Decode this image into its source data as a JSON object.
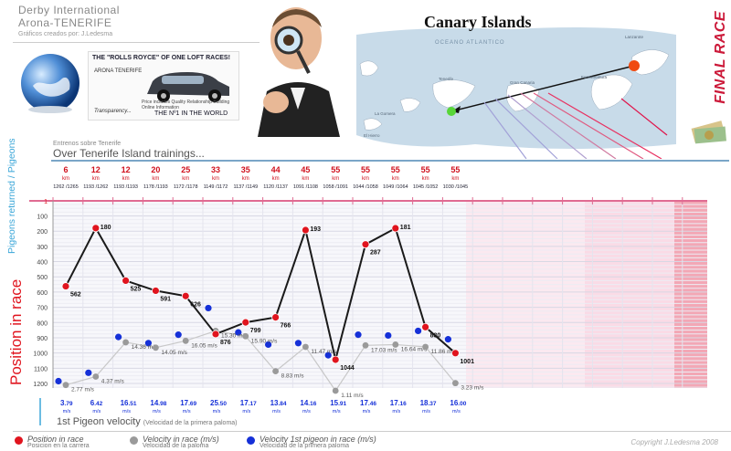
{
  "header": {
    "title_line1": "Derby International",
    "title_line2": "Arona-TENERIFE",
    "credit": "Gráficos creados por: J.Ledesma",
    "final_race": "FINAL RACE"
  },
  "promo": {
    "headline": "THE \"ROLLS ROYCE\" OF ONE LOFT RACES!",
    "brand": "ARONA TENERIFE",
    "small_text": "Price includes Quality Relationship Building Online Information",
    "transparency": "Transparency...",
    "tagline": "THE Nº1 IN THE WORLD"
  },
  "map": {
    "title": "Canary Islands",
    "ocean": "OCEANO ATLANTICO",
    "islands": [
      "Lanzarote",
      "Tenerife",
      "La Gomera",
      "El Hierro",
      "Gran Canaria",
      "Fuerteventura"
    ]
  },
  "training": {
    "subtitle": "Entrenos sobre Tenerife",
    "title": "Over Tenerife Island trainings..."
  },
  "side_labels": {
    "pigeons": "Pigeons returned / Pigeons sent",
    "position": "Position in race"
  },
  "chart_data": {
    "type": "line",
    "distances_km": [
      6,
      12,
      12,
      20,
      25,
      33,
      35,
      44,
      45,
      55,
      55,
      55,
      55,
      55
    ],
    "distance_unit": "km",
    "pigeons_returned": [
      1262,
      1193,
      1193,
      1178,
      1172,
      1149,
      1137,
      1120,
      1091,
      1058,
      1044,
      1049,
      1045,
      1030
    ],
    "pigeons_sent": [
      1265,
      1262,
      1193,
      1193,
      1178,
      1172,
      1149,
      1137,
      1108,
      1091,
      1058,
      1064,
      1052,
      1045
    ],
    "y_axis_ticks": [
      1,
      100,
      200,
      300,
      400,
      500,
      600,
      700,
      800,
      900,
      1000,
      1100,
      1200
    ],
    "ylim": [
      1,
      1230
    ],
    "series": [
      {
        "name": "Position in race",
        "color": "#e0141e",
        "values": [
          562,
          180,
          525,
          591,
          626,
          876,
          799,
          766,
          193,
          1044,
          287,
          181,
          830,
          1001
        ],
        "labels": [
          "562",
          "180",
          "525",
          "591",
          "626",
          "876",
          "799",
          "766",
          "193",
          "1044",
          "287",
          "181",
          "830",
          "1001"
        ]
      },
      {
        "name": "Velocity in race (m/s)",
        "color": "#9a9a9a",
        "positions": [
          1210,
          1155,
          930,
          965,
          920,
          855,
          890,
          1120,
          960,
          1248,
          950,
          945,
          960,
          1198
        ],
        "labels": [
          "2.77",
          "4.37",
          "14.36",
          "14.05",
          "16.05",
          "15.30",
          "15.90",
          "8.83",
          "11.47",
          "1.11",
          "17.03",
          "16.64",
          "11.86",
          "3.23"
        ],
        "unit": "m/s"
      },
      {
        "name": "Velocity 1st pigeon in race (m/s)",
        "color": "#1530d8",
        "positions": [
          1185,
          1130,
          895,
          935,
          880,
          705,
          865,
          945,
          935,
          1015,
          880,
          885,
          855,
          910
        ]
      }
    ],
    "first_velocity_int": [
      "3",
      "6",
      "16",
      "14",
      "17",
      "25",
      "17",
      "13",
      "14",
      "15",
      "17",
      "17",
      "18",
      "16"
    ],
    "first_velocity_dec": [
      ".79",
      ".42",
      ".51",
      ".98",
      ".69",
      ".50",
      ".17",
      ".84",
      ".16",
      ".91",
      ".46",
      ".16",
      ".37",
      ".00"
    ]
  },
  "velocity_note": {
    "title": "1st Pigeon velocity",
    "subtitle": "(Velocidad de la primera paloma)"
  },
  "legend": [
    {
      "label": "Position in race",
      "sub": "Posicion en la carrera",
      "color": "#e0141e"
    },
    {
      "label": "Velocity in race (m/s)",
      "sub": "Velocidad de la paloma",
      "color": "#9a9a9a"
    },
    {
      "label": "Velocity 1st pigeon in race (m/s)",
      "sub": "Velocidad de la primera paloma",
      "color": "#1530d8"
    }
  ],
  "copyright": "Copyright J.Ledesma 2008"
}
